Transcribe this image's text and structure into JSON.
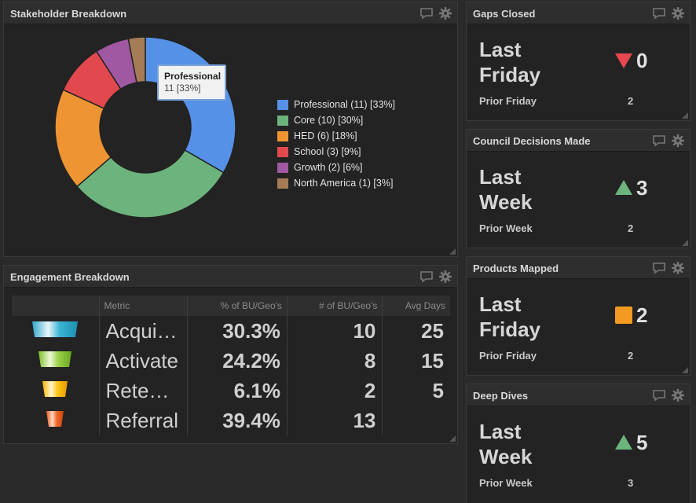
{
  "stakeholder": {
    "title": "Stakeholder Breakdown",
    "tooltip": {
      "title": "Professional",
      "value": "11 [33%]"
    },
    "legend": [
      {
        "label": "Professional (11) [33%]",
        "color": "#5591e6"
      },
      {
        "label": "Core (10) [30%]",
        "color": "#6db37d"
      },
      {
        "label": "HED (6) [18%]",
        "color": "#ef9433"
      },
      {
        "label": "School (3) [9%]",
        "color": "#e2494f"
      },
      {
        "label": "Growth (2) [6%]",
        "color": "#a058a2"
      },
      {
        "label": "North America (1) [3%]",
        "color": "#a57c56"
      }
    ]
  },
  "chart_data": {
    "type": "pie",
    "categories": [
      "Professional",
      "Core",
      "HED",
      "School",
      "Growth",
      "North America"
    ],
    "values": [
      11,
      10,
      6,
      3,
      2,
      1
    ],
    "percent": [
      33,
      30,
      18,
      9,
      6,
      3
    ],
    "colors": [
      "#5591e6",
      "#6db37d",
      "#ef9433",
      "#e2494f",
      "#a058a2",
      "#a57c56"
    ],
    "title": "Stakeholder Breakdown",
    "legend": "right",
    "donut": true
  },
  "engagement": {
    "title": "Engagement Breakdown",
    "headers": [
      "",
      "Metric",
      "% of BU/Geo's",
      "# of BU/Geo's",
      "Avg Days"
    ],
    "rows": [
      {
        "metric": "Acqui…",
        "pct": "30.3%",
        "count": "10",
        "days": "25",
        "funnel": "funnel-stage-1-icon"
      },
      {
        "metric": "Activate",
        "pct": "24.2%",
        "count": "8",
        "days": "15",
        "funnel": "funnel-stage-2-icon"
      },
      {
        "metric": "Rete…",
        "pct": "6.1%",
        "count": "2",
        "days": "5",
        "funnel": "funnel-stage-3-icon"
      },
      {
        "metric": "Referral",
        "pct": "39.4%",
        "count": "13",
        "days": "",
        "funnel": "funnel-stage-4-icon"
      }
    ]
  },
  "kpis": [
    {
      "title": "Gaps Closed",
      "period_line1": "Last",
      "period_line2": "Friday",
      "value": "0",
      "indicator": "down",
      "indicator_color": "#e8484f",
      "prior_label": "Prior Friday",
      "prior_value": "2"
    },
    {
      "title": "Council Decisions Made",
      "period_line1": "Last",
      "period_line2": "Week",
      "value": "3",
      "indicator": "up",
      "indicator_color": "#6db37d",
      "prior_label": "Prior Week",
      "prior_value": "2"
    },
    {
      "title": "Products Mapped",
      "period_line1": "Last",
      "period_line2": "Friday",
      "value": "2",
      "indicator": "neutral",
      "indicator_color": "#f39a22",
      "prior_label": "Prior Friday",
      "prior_value": "2"
    },
    {
      "title": "Deep Dives",
      "period_line1": "Last",
      "period_line2": "Week",
      "value": "5",
      "indicator": "up",
      "indicator_color": "#6db37d",
      "prior_label": "Prior Week",
      "prior_value": "3"
    }
  ],
  "icons": {
    "comment": "comment-icon",
    "settings": "gear-icon"
  }
}
